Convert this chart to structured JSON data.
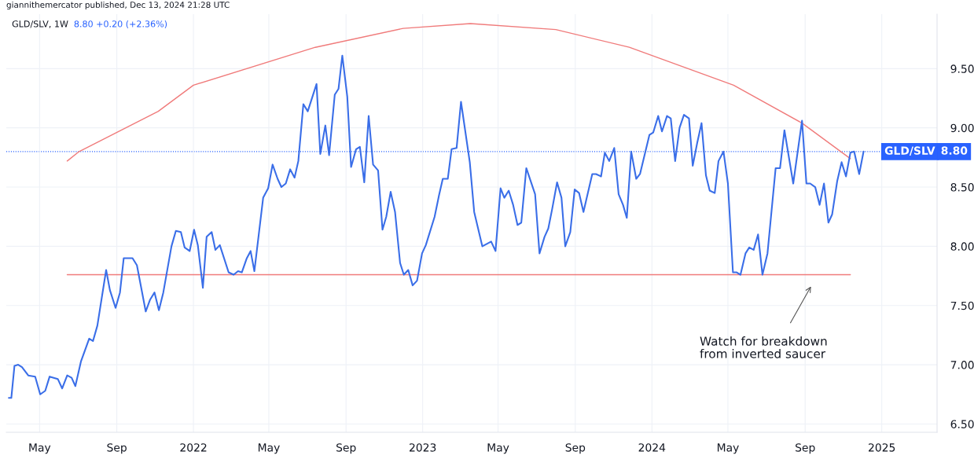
{
  "chart_data": {
    "type": "line",
    "title": "giannithemercator published, Dec 13, 2024 21:28 UTC",
    "subtitle": "GLD/SLV, 1W",
    "annotations": [
      "8.80 +0.20 (+2.36%)",
      "Watch for breakdown\nfrom inverted saucer",
      "8.80"
    ],
    "series": [
      {
        "color": "#3a6ee8",
        "x": [
          "2021-03-13",
          "2021-03-17",
          "2021-03-22",
          "2021-03-28",
          "2021-04-03",
          "2021-04-13",
          "2021-04-24",
          "2021-05-02",
          "2021-05-10",
          "2021-05-17",
          "2021-05-30",
          "2021-06-06",
          "2021-06-14",
          "2021-06-21",
          "2021-06-27",
          "2021-07-06",
          "2021-07-19",
          "2021-07-25",
          "2021-08-01",
          "2021-08-15",
          "2021-08-21",
          "2021-08-30",
          "2021-09-06",
          "2021-09-12",
          "2021-09-26",
          "2021-10-03",
          "2021-10-17",
          "2021-10-24",
          "2021-10-31",
          "2021-11-07",
          "2021-11-14",
          "2021-11-27",
          "2021-12-04",
          "2021-12-12",
          "2021-12-18",
          "2021-12-26",
          "2022-01-02",
          "2022-01-08",
          "2022-01-16",
          "2022-01-22",
          "2022-01-30",
          "2022-02-05",
          "2022-02-12",
          "2022-02-26",
          "2022-03-06",
          "2022-03-13",
          "2022-03-19",
          "2022-03-27",
          "2022-04-02",
          "2022-04-08",
          "2022-04-22",
          "2022-04-30",
          "2022-05-07",
          "2022-05-15",
          "2022-05-21",
          "2022-05-28",
          "2022-06-04",
          "2022-06-11",
          "2022-06-17",
          "2022-06-25",
          "2022-07-02",
          "2022-07-16",
          "2022-07-22",
          "2022-07-30",
          "2022-08-05",
          "2022-08-14",
          "2022-08-20",
          "2022-08-26",
          "2022-09-03",
          "2022-09-09",
          "2022-09-17",
          "2022-09-23",
          "2022-09-30",
          "2022-10-07",
          "2022-10-14",
          "2022-10-22",
          "2022-10-29",
          "2022-11-04",
          "2022-11-11",
          "2022-11-18",
          "2022-11-26",
          "2022-12-02",
          "2022-12-09",
          "2022-12-16",
          "2022-12-23",
          "2022-12-31",
          "2023-01-06",
          "2023-01-20",
          "2023-01-27",
          "2023-02-02",
          "2023-02-10",
          "2023-02-16",
          "2023-02-24",
          "2023-03-03",
          "2023-03-17",
          "2023-03-24",
          "2023-04-06",
          "2023-04-20",
          "2023-04-27",
          "2023-05-05",
          "2023-05-11",
          "2023-05-18",
          "2023-05-25",
          "2023-06-01",
          "2023-06-07",
          "2023-06-15",
          "2023-06-29",
          "2023-07-06",
          "2023-07-14",
          "2023-07-20",
          "2023-07-26",
          "2023-08-03",
          "2023-08-10",
          "2023-08-16",
          "2023-08-24",
          "2023-08-31",
          "2023-09-07",
          "2023-09-14",
          "2023-09-28",
          "2023-10-04",
          "2023-10-12",
          "2023-10-18",
          "2023-10-25",
          "2023-11-02",
          "2023-11-09",
          "2023-11-16",
          "2023-11-22",
          "2023-11-29",
          "2023-12-07",
          "2023-12-13",
          "2023-12-28",
          "2024-01-03",
          "2024-01-11",
          "2024-01-17",
          "2024-01-25",
          "2024-01-31",
          "2024-02-07",
          "2024-02-14",
          "2024-02-21",
          "2024-02-29",
          "2024-03-06",
          "2024-03-13",
          "2024-03-20",
          "2024-03-27",
          "2024-04-02",
          "2024-04-10",
          "2024-04-16",
          "2024-04-24",
          "2024-05-01",
          "2024-05-09",
          "2024-05-15",
          "2024-05-21",
          "2024-05-29",
          "2024-06-04",
          "2024-06-11",
          "2024-06-18",
          "2024-06-25",
          "2024-07-03",
          "2024-07-16",
          "2024-07-23",
          "2024-07-30",
          "2024-08-13",
          "2024-08-27",
          "2024-09-03",
          "2024-09-09",
          "2024-09-17",
          "2024-09-24",
          "2024-10-01",
          "2024-10-08",
          "2024-10-14",
          "2024-10-22",
          "2024-10-29",
          "2024-11-05",
          "2024-11-12",
          "2024-11-18",
          "2024-11-26",
          "2024-12-03"
        ],
        "values": [
          6.72,
          6.72,
          6.99,
          7.0,
          6.98,
          6.91,
          6.9,
          6.75,
          6.78,
          6.9,
          6.88,
          6.8,
          6.91,
          6.89,
          6.82,
          7.03,
          7.22,
          7.2,
          7.33,
          7.8,
          7.63,
          7.48,
          7.61,
          7.9,
          7.9,
          7.84,
          7.45,
          7.55,
          7.61,
          7.46,
          7.61,
          8.0,
          8.13,
          8.12,
          7.99,
          7.96,
          8.14,
          8.01,
          7.65,
          8.08,
          8.12,
          7.97,
          8.01,
          7.78,
          7.76,
          7.79,
          7.78,
          7.9,
          7.96,
          7.79,
          8.41,
          8.49,
          8.69,
          8.57,
          8.5,
          8.53,
          8.65,
          8.58,
          8.72,
          9.2,
          9.14,
          9.37,
          8.78,
          9.02,
          8.77,
          9.28,
          9.33,
          9.61,
          9.26,
          8.67,
          8.82,
          8.84,
          8.54,
          9.1,
          8.69,
          8.64,
          8.14,
          8.25,
          8.46,
          8.29,
          7.86,
          7.76,
          7.8,
          7.67,
          7.71,
          7.94,
          8.01,
          8.25,
          8.43,
          8.57,
          8.57,
          8.82,
          8.83,
          9.22,
          8.71,
          8.29,
          8.0,
          8.04,
          7.96,
          8.49,
          8.41,
          8.47,
          8.35,
          8.18,
          8.2,
          8.66,
          8.44,
          7.94,
          8.08,
          8.15,
          8.31,
          8.54,
          8.41,
          8.0,
          8.12,
          8.48,
          8.45,
          8.29,
          8.61,
          8.61,
          8.59,
          8.79,
          8.72,
          8.83,
          8.44,
          8.35,
          8.24,
          8.8,
          8.57,
          8.61,
          8.94,
          8.96,
          9.1,
          8.97,
          9.1,
          9.08,
          8.72,
          9.0,
          9.11,
          9.08,
          8.68,
          8.87,
          9.04,
          8.6,
          8.47,
          8.45,
          8.72,
          8.8,
          8.53,
          7.78,
          7.78,
          7.76,
          7.94,
          7.99,
          7.97,
          8.1,
          7.76,
          7.94,
          8.66,
          8.66,
          8.98,
          8.53,
          9.06,
          8.53,
          8.53,
          8.5,
          8.35,
          8.53,
          8.2,
          8.27,
          8.55,
          8.71,
          8.59,
          8.79,
          8.8,
          8.61,
          8.8
        ]
      },
      {
        "color": "#f07b7b",
        "x": [
          "2021-06-14",
          "2021-07-03",
          "2021-11-06",
          "2022-01-01",
          "2022-07-14",
          "2022-12-01",
          "2023-03-18",
          "2023-08-01",
          "2023-11-26",
          "2024-05-10",
          "2024-08-27",
          "2024-11-12"
        ],
        "values": [
          8.72,
          8.8,
          9.14,
          9.36,
          9.68,
          9.84,
          9.88,
          9.83,
          9.68,
          9.36,
          9.04,
          8.74
        ]
      },
      {
        "color": "#f07b7b",
        "x": [
          "2021-06-14",
          "2024-11-12"
        ],
        "values": [
          7.76,
          7.76
        ]
      }
    ],
    "ref_lines": [
      {
        "axis": "y",
        "value": 8.8,
        "label": "GLD/SLV",
        "color": "#2962ff",
        "line_style": "dotted"
      }
    ],
    "xlim": [
      "2021-03-09",
      "2025-03-30"
    ],
    "xticks": [
      {
        "value": "2021-05-01",
        "label": "May"
      },
      {
        "value": "2021-09-01",
        "label": "Sep"
      },
      {
        "value": "2022-01-01",
        "label": "2022"
      },
      {
        "value": "2022-05-01",
        "label": "May"
      },
      {
        "value": "2022-09-01",
        "label": "Sep"
      },
      {
        "value": "2023-01-01",
        "label": "2023"
      },
      {
        "value": "2023-05-01",
        "label": "May"
      },
      {
        "value": "2023-09-01",
        "label": "Sep"
      },
      {
        "value": "2024-01-01",
        "label": "2024"
      },
      {
        "value": "2024-05-01",
        "label": "May"
      },
      {
        "value": "2024-09-01",
        "label": "Sep"
      },
      {
        "value": "2025-01-01",
        "label": "2025"
      }
    ],
    "ylim": [
      6.43,
      9.96
    ],
    "yticks": [
      {
        "value": 6.5,
        "label": "6.50"
      },
      {
        "value": 7.0,
        "label": "7.00"
      },
      {
        "value": 7.5,
        "label": "7.50"
      },
      {
        "value": 8.0,
        "label": "8.00"
      },
      {
        "value": 8.5,
        "label": "8.50"
      },
      {
        "value": 9.0,
        "label": "9.00"
      },
      {
        "value": 9.5,
        "label": "9.50"
      }
    ],
    "grid": true,
    "marker": "none",
    "line_style": "solid"
  }
}
